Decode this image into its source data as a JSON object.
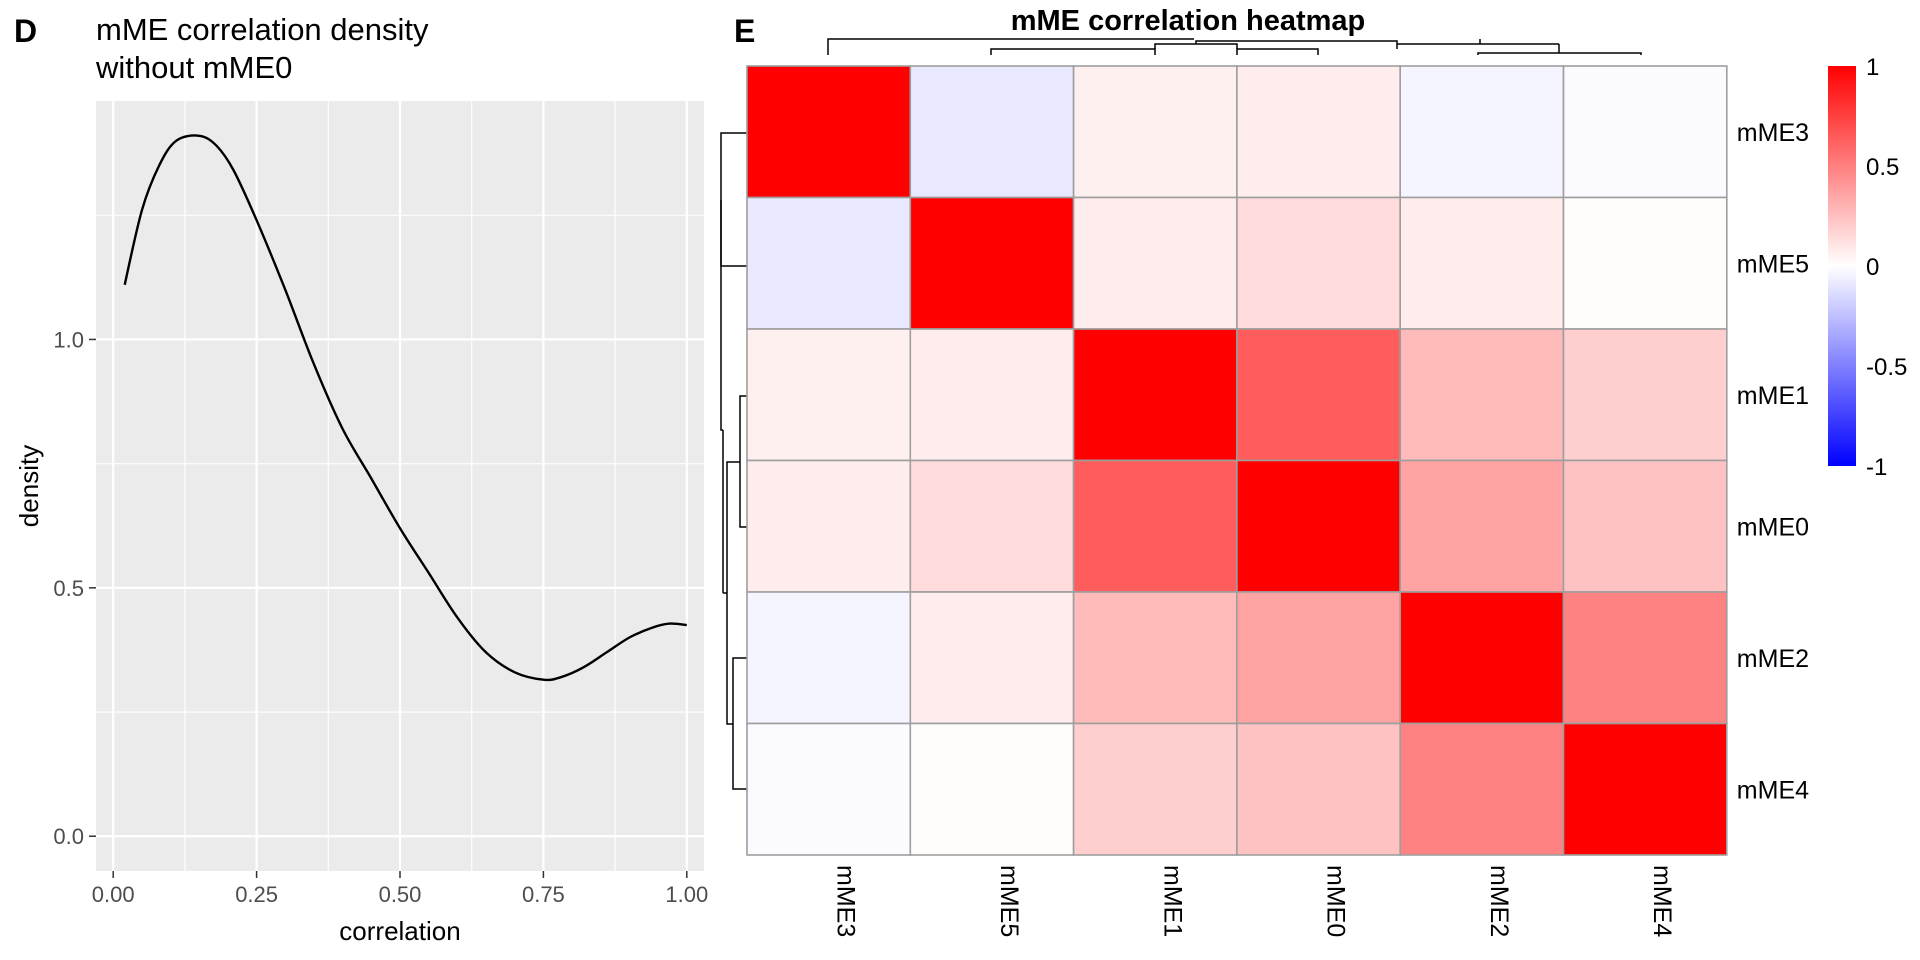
{
  "panel_d": {
    "letter": "D"
  },
  "panel_e": {
    "letter": "E"
  },
  "chart_data": [
    {
      "type": "line",
      "title": "mME correlation density\n without mME0",
      "xlabel": "correlation",
      "ylabel": "density",
      "xlim": [
        -0.03,
        1.03
      ],
      "ylim": [
        -0.07,
        1.48
      ],
      "xticks": [
        "0.00",
        "0.25",
        "0.50",
        "0.75",
        "1.00"
      ],
      "yticks": [
        "0.0",
        "0.5",
        "1.0"
      ],
      "grid": true,
      "background": "#ebebeb",
      "series": [
        {
          "x": [
            0.02,
            0.05,
            0.08,
            0.11,
            0.15,
            0.18,
            0.21,
            0.25,
            0.3,
            0.35,
            0.4,
            0.45,
            0.5,
            0.55,
            0.6,
            0.65,
            0.7,
            0.75,
            0.78,
            0.82,
            0.86,
            0.9,
            0.94,
            0.97,
            1.0
          ],
          "y": [
            1.11,
            1.26,
            1.35,
            1.4,
            1.41,
            1.39,
            1.34,
            1.24,
            1.1,
            0.95,
            0.82,
            0.72,
            0.62,
            0.53,
            0.44,
            0.37,
            0.33,
            0.315,
            0.32,
            0.34,
            0.37,
            0.4,
            0.42,
            0.428,
            0.425
          ]
        }
      ]
    },
    {
      "type": "heatmap",
      "title": "mME correlation heatmap",
      "rows": [
        "mME3",
        "mME5",
        "mME1",
        "mME0",
        "mME2",
        "mME4"
      ],
      "cols": [
        "mME3",
        "mME5",
        "mME1",
        "mME0",
        "mME2",
        "mME4"
      ],
      "values": [
        [
          1.0,
          -0.09,
          0.06,
          0.07,
          -0.04,
          -0.02
        ],
        [
          -0.09,
          1.0,
          0.07,
          0.14,
          0.07,
          0.01
        ],
        [
          0.06,
          0.07,
          1.0,
          0.64,
          0.27,
          0.19
        ],
        [
          0.07,
          0.14,
          0.64,
          1.0,
          0.36,
          0.24
        ],
        [
          -0.04,
          0.07,
          0.27,
          0.36,
          1.0,
          0.49
        ],
        [
          -0.02,
          0.01,
          0.19,
          0.24,
          0.49,
          1.0
        ]
      ],
      "color_scale": {
        "min": -1,
        "max": 1,
        "low": "#0000ff",
        "mid": "#ffffff",
        "high": "#ff0000"
      },
      "legend_ticks": [
        "1",
        "0.5",
        "0",
        "-0.5",
        "-1"
      ],
      "dendrograms": true
    }
  ]
}
